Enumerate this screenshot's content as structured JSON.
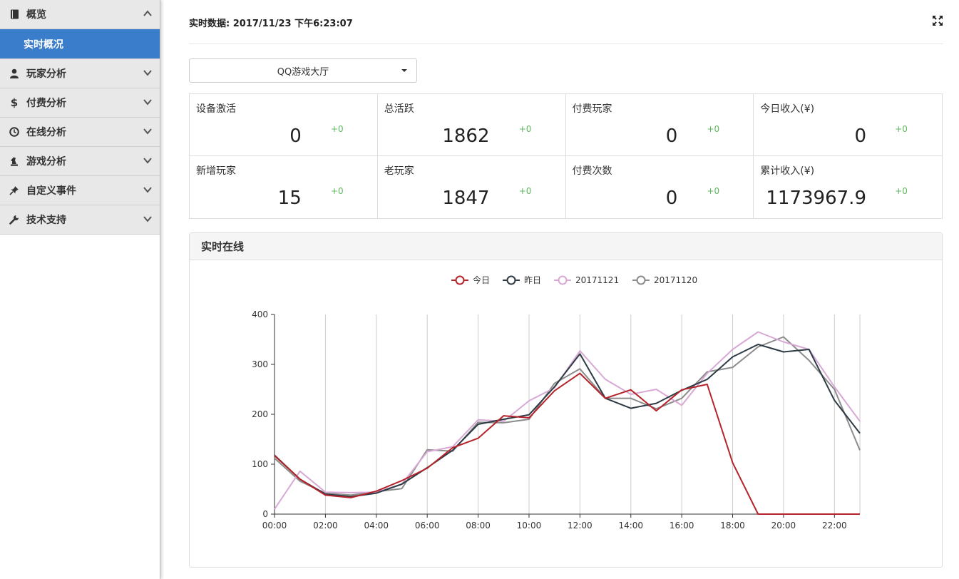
{
  "sidebar": {
    "items": [
      {
        "label": "概览",
        "icon": "book-icon",
        "expanded": true
      },
      {
        "label": "实时概况",
        "sub": true,
        "active": true
      },
      {
        "label": "玩家分析",
        "icon": "user-icon"
      },
      {
        "label": "付费分析",
        "icon": "dollar-icon"
      },
      {
        "label": "在线分析",
        "icon": "clock-icon"
      },
      {
        "label": "游戏分析",
        "icon": "chess-knight-icon"
      },
      {
        "label": "自定义事件",
        "icon": "pushpin-icon"
      },
      {
        "label": "技术支持",
        "icon": "wrench-icon"
      }
    ]
  },
  "header": {
    "realtime_label": "实时数据: 2017/11/23 下午6:23:07"
  },
  "select": {
    "value": "QQ游戏大厅"
  },
  "stats": [
    {
      "label": "设备激活",
      "value": "0",
      "delta": "+0"
    },
    {
      "label": "总活跃",
      "value": "1862",
      "delta": "+0"
    },
    {
      "label": "付费玩家",
      "value": "0",
      "delta": "+0"
    },
    {
      "label": "今日收入(¥)",
      "value": "0",
      "delta": "+0"
    },
    {
      "label": "新增玩家",
      "value": "15",
      "delta": "+0"
    },
    {
      "label": "老玩家",
      "value": "1847",
      "delta": "+0"
    },
    {
      "label": "付费次数",
      "value": "0",
      "delta": "+0"
    },
    {
      "label": "累计收入(¥)",
      "value": "1173967.9",
      "delta": "+0"
    }
  ],
  "panel": {
    "title": "实时在线"
  },
  "chart_data": {
    "type": "line",
    "x": [
      "00:00",
      "01:00",
      "02:00",
      "03:00",
      "04:00",
      "05:00",
      "06:00",
      "07:00",
      "08:00",
      "09:00",
      "10:00",
      "11:00",
      "12:00",
      "13:00",
      "14:00",
      "15:00",
      "16:00",
      "17:00",
      "18:00",
      "19:00",
      "20:00",
      "21:00",
      "22:00",
      "23:00"
    ],
    "xticks": [
      "00:00",
      "02:00",
      "04:00",
      "06:00",
      "08:00",
      "10:00",
      "12:00",
      "14:00",
      "16:00",
      "18:00",
      "20:00",
      "22:00"
    ],
    "ylim": [
      0,
      400
    ],
    "yticks": [
      0,
      100,
      200,
      300,
      400
    ],
    "grid": "vertical",
    "legend": "top-center",
    "series": [
      {
        "name": "今日",
        "color": "#b5242b",
        "values": [
          117,
          70,
          38,
          33,
          46,
          67,
          92,
          133,
          152,
          197,
          193,
          247,
          282,
          232,
          249,
          207,
          249,
          260,
          103,
          0,
          0,
          0,
          0,
          0
        ]
      },
      {
        "name": "昨日",
        "color": "#2e3b45",
        "values": [
          118,
          70,
          40,
          35,
          42,
          60,
          93,
          128,
          180,
          190,
          199,
          255,
          321,
          232,
          212,
          222,
          248,
          270,
          315,
          340,
          325,
          330,
          228,
          162
        ]
      },
      {
        "name": "20171121",
        "color": "#d7a9d4",
        "values": [
          10,
          86,
          44,
          43,
          44,
          60,
          125,
          135,
          189,
          186,
          227,
          253,
          327,
          270,
          240,
          250,
          218,
          282,
          330,
          365,
          345,
          330,
          255,
          186
        ]
      },
      {
        "name": "20171120",
        "color": "#8c8c8c",
        "values": [
          112,
          66,
          42,
          38,
          45,
          51,
          129,
          126,
          184,
          183,
          190,
          262,
          291,
          232,
          232,
          211,
          232,
          285,
          294,
          335,
          355,
          308,
          250,
          128
        ]
      }
    ]
  }
}
